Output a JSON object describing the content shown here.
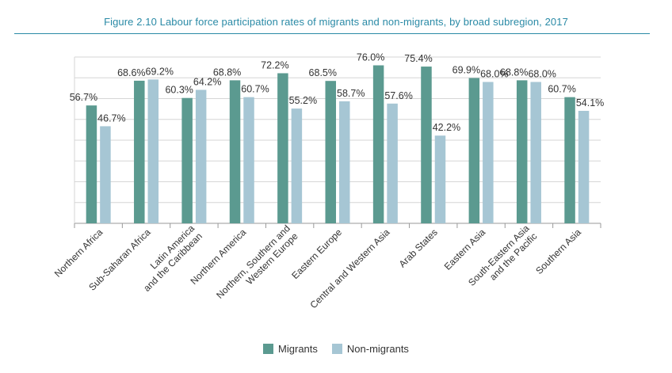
{
  "figure": {
    "title": "Figure 2.10 Labour force participation rates of migrants and non-migrants, by broad subregion, 2017"
  },
  "colors": {
    "migrants": "#5b9a90",
    "non_migrants": "#a6c6d4",
    "grid": "#d6d6d6",
    "axis": "#999999",
    "title": "#2a8aa6"
  },
  "legend": [
    {
      "key": "migrants",
      "label": "Migrants"
    },
    {
      "key": "non_migrants",
      "label": "Non-migrants"
    }
  ],
  "chart_data": {
    "type": "bar",
    "title": "Figure 2.10 Labour force participation rates of migrants and non-migrants, by broad subregion, 2017",
    "categories": [
      [
        "Northern Africa"
      ],
      [
        "Sub-Saharan Africa"
      ],
      [
        "Latin America",
        "and the Caribbean"
      ],
      [
        "Northern America"
      ],
      [
        "Northern, Southern and",
        "Western Europe"
      ],
      [
        "Eastern Europe"
      ],
      [
        "Central and Western Asia"
      ],
      [
        "Arab States"
      ],
      [
        "Eastern Asia"
      ],
      [
        "South-Eastern Asia",
        "and the Pacific"
      ],
      [
        "Southern Asia"
      ]
    ],
    "series": [
      {
        "name": "Migrants",
        "values": [
          56.7,
          68.6,
          60.3,
          68.8,
          72.2,
          68.5,
          76.0,
          75.4,
          69.9,
          68.8,
          60.7
        ],
        "labels": [
          "56.7%",
          "68.6%",
          "60.3%",
          "68.8%",
          "72.2%",
          "68.5%",
          "76.0%",
          "75.4%",
          "69.9%",
          "68.8%",
          "60.7%"
        ]
      },
      {
        "name": "Non-migrants",
        "values": [
          46.7,
          69.2,
          64.2,
          60.7,
          55.2,
          58.7,
          57.6,
          42.2,
          68.0,
          68.0,
          54.1
        ],
        "labels": [
          "46.7%",
          "69.2%",
          "64.2%",
          "60.7%",
          "55.2%",
          "58.7%",
          "57.6%",
          "42.2%",
          "68.0%",
          "68.0%",
          "54.1%"
        ]
      }
    ],
    "ylim": [
      0,
      80
    ],
    "grid": true,
    "xlabel": "",
    "ylabel": "",
    "legend_position": "bottom-center"
  }
}
